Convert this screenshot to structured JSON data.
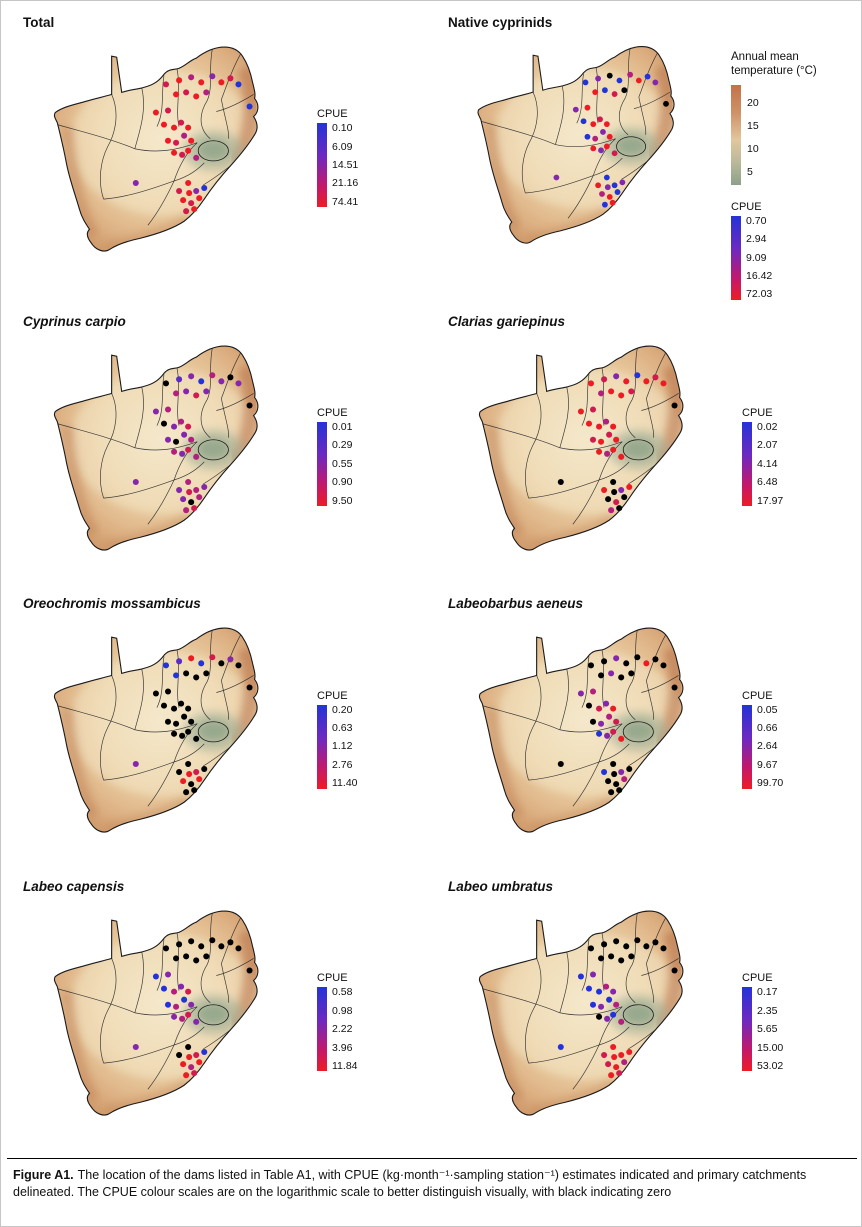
{
  "cpue_legend_title": "CPUE",
  "temp_legend": {
    "title_line1": "Annual mean",
    "title_line2": "temperature (°C)",
    "ticks": [
      "20",
      "15",
      "10",
      "5"
    ]
  },
  "caption": {
    "label": "Figure A1.",
    "text": "The location of the dams listed in Table A1, with CPUE (kg·month⁻¹·sampling station⁻¹) estimates indicated and primary catchments delineated. The CPUE colour scales are on the logarithmic scale to better distinguish visually, with black indicating zero"
  },
  "map": {
    "stations": [
      [
        150,
        52
      ],
      [
        163,
        48
      ],
      [
        175,
        45
      ],
      [
        185,
        50
      ],
      [
        196,
        44
      ],
      [
        205,
        50
      ],
      [
        214,
        46
      ],
      [
        222,
        52
      ],
      [
        160,
        62
      ],
      [
        170,
        60
      ],
      [
        180,
        64
      ],
      [
        190,
        60
      ],
      [
        233,
        74
      ],
      [
        140,
        80
      ],
      [
        152,
        78
      ],
      [
        148,
        92
      ],
      [
        158,
        95
      ],
      [
        165,
        90
      ],
      [
        172,
        95
      ],
      [
        168,
        103
      ],
      [
        175,
        108
      ],
      [
        160,
        110
      ],
      [
        152,
        108
      ],
      [
        158,
        120
      ],
      [
        166,
        122
      ],
      [
        172,
        118
      ],
      [
        180,
        125
      ],
      [
        120,
        150
      ],
      [
        172,
        150
      ],
      [
        163,
        158
      ],
      [
        173,
        160
      ],
      [
        180,
        158
      ],
      [
        167,
        167
      ],
      [
        175,
        170
      ],
      [
        183,
        165
      ],
      [
        188,
        155
      ],
      [
        178,
        176
      ],
      [
        170,
        178
      ]
    ]
  },
  "panels": [
    {
      "id": "total",
      "title": "Total",
      "italic": false,
      "cpue_labels": [
        "0.10",
        "6.09",
        "14.51",
        "21.16",
        "74.41"
      ],
      "has_temp_legend": false,
      "dot_colors": [
        "#d11a4e",
        "#ed1c24",
        "#b21f7e",
        "#ed1c24",
        "#8427ad",
        "#ed1c24",
        "#d11a4e",
        "#2433d8",
        "#ed1c24",
        "#d11a4e",
        "#ed1c24",
        "#b21f7e",
        "#2433d8",
        "#ed1c24",
        "#d11a4e",
        "#ed1c24",
        "#ed1c24",
        "#d11a4e",
        "#ed1c24",
        "#b21f7e",
        "#ed1c24",
        "#d11a4e",
        "#ed1c24",
        "#ed1c24",
        "#d11a4e",
        "#ed1c24",
        "#b21f7e",
        "#8427ad",
        "#ed1c24",
        "#d11a4e",
        "#ed1c24",
        "#8427ad",
        "#ed1c24",
        "#d11a4e",
        "#ed1c24",
        "#2433d8",
        "#ed1c24",
        "#d11a4e"
      ]
    },
    {
      "id": "native-cyprinids",
      "title": "Native cyprinids",
      "italic": false,
      "cpue_labels": [
        "0.70",
        "2.94",
        "9.09",
        "16.42",
        "72.03"
      ],
      "has_temp_legend": true,
      "dot_colors": [
        "#2433d8",
        "#8427ad",
        "#000000",
        "#2433d8",
        "#b21f7e",
        "#ed1c24",
        "#2433d8",
        "#8427ad",
        "#ed1c24",
        "#2433d8",
        "#d11a4e",
        "#000000",
        "#000000",
        "#8427ad",
        "#ed1c24",
        "#2433d8",
        "#ed1c24",
        "#d11a4e",
        "#ed1c24",
        "#8427ad",
        "#ed1c24",
        "#b21f7e",
        "#2433d8",
        "#ed1c24",
        "#8427ad",
        "#ed1c24",
        "#d11a4e",
        "#8427ad",
        "#2433d8",
        "#ed1c24",
        "#8427ad",
        "#2433d8",
        "#b21f7e",
        "#ed1c24",
        "#2433d8",
        "#8427ad",
        "#ed1c24",
        "#2433d8"
      ]
    },
    {
      "id": "cyprinus-carpio",
      "title": "Cyprinus carpio",
      "italic": true,
      "cpue_labels": [
        "0.01",
        "0.29",
        "0.55",
        "0.90",
        "9.50"
      ],
      "has_temp_legend": false,
      "dot_colors": [
        "#000000",
        "#5a2bc6",
        "#8427ad",
        "#2433d8",
        "#b21f7e",
        "#8427ad",
        "#000000",
        "#8427ad",
        "#b21f7e",
        "#8427ad",
        "#d11a4e",
        "#8427ad",
        "#000000",
        "#8427ad",
        "#b21f7e",
        "#000000",
        "#8427ad",
        "#b21f7e",
        "#d11a4e",
        "#8427ad",
        "#b21f7e",
        "#000000",
        "#8427ad",
        "#b21f7e",
        "#8427ad",
        "#d11a4e",
        "#b21f7e",
        "#8427ad",
        "#b21f7e",
        "#8427ad",
        "#d11a4e",
        "#b21f7e",
        "#8427ad",
        "#000000",
        "#b21f7e",
        "#8427ad",
        "#d11a4e",
        "#b21f7e"
      ]
    },
    {
      "id": "clarias-gariepinus",
      "title": "Clarias gariepinus",
      "italic": true,
      "cpue_labels": [
        "0.02",
        "2.07",
        "4.14",
        "6.48",
        "17.97"
      ],
      "has_temp_legend": false,
      "dot_colors": [
        "#ed1c24",
        "#d11a4e",
        "#8427ad",
        "#ed1c24",
        "#2433d8",
        "#ed1c24",
        "#d11a4e",
        "#ed1c24",
        "#b21f7e",
        "#ed1c24",
        "#ed1c24",
        "#d11a4e",
        "#000000",
        "#ed1c24",
        "#d11a4e",
        "#ed1c24",
        "#ed1c24",
        "#b21f7e",
        "#ed1c24",
        "#d11a4e",
        "#ed1c24",
        "#ed1c24",
        "#d11a4e",
        "#ed1c24",
        "#b21f7e",
        "#ed1c24",
        "#ed1c24",
        "#000000",
        "#000000",
        "#ed1c24",
        "#000000",
        "#8427ad",
        "#000000",
        "#d11a4e",
        "#000000",
        "#ed1c24",
        "#000000",
        "#b21f7e"
      ]
    },
    {
      "id": "oreochromis-mossambicus",
      "title": "Oreochromis mossambicus",
      "italic": true,
      "cpue_labels": [
        "0.20",
        "0.63",
        "1.12",
        "2.76",
        "11.40"
      ],
      "has_temp_legend": false,
      "dot_colors": [
        "#2433d8",
        "#5a2bc6",
        "#ed1c24",
        "#2433d8",
        "#d11a4e",
        "#000000",
        "#8427ad",
        "#000000",
        "#2433d8",
        "#000000",
        "#000000",
        "#000000",
        "#000000",
        "#000000",
        "#000000",
        "#000000",
        "#000000",
        "#000000",
        "#000000",
        "#000000",
        "#000000",
        "#000000",
        "#000000",
        "#000000",
        "#000000",
        "#000000",
        "#000000",
        "#8427ad",
        "#000000",
        "#000000",
        "#ed1c24",
        "#d11a4e",
        "#ed1c24",
        "#000000",
        "#ed1c24",
        "#000000",
        "#000000",
        "#000000"
      ]
    },
    {
      "id": "labeobarbus-aeneus",
      "title": "Labeobarbus aeneus",
      "italic": true,
      "cpue_labels": [
        "0.05",
        "0.66",
        "2.64",
        "9.67",
        "99.70"
      ],
      "has_temp_legend": false,
      "dot_colors": [
        "#000000",
        "#000000",
        "#8427ad",
        "#000000",
        "#000000",
        "#ed1c24",
        "#000000",
        "#000000",
        "#000000",
        "#8427ad",
        "#000000",
        "#000000",
        "#000000",
        "#8427ad",
        "#b21f7e",
        "#000000",
        "#d11a4e",
        "#8427ad",
        "#ed1c24",
        "#b21f7e",
        "#d11a4e",
        "#8427ad",
        "#000000",
        "#2433d8",
        "#8427ad",
        "#d11a4e",
        "#ed1c24",
        "#000000",
        "#000000",
        "#2433d8",
        "#000000",
        "#8427ad",
        "#000000",
        "#000000",
        "#b21f7e",
        "#000000",
        "#000000",
        "#000000"
      ]
    },
    {
      "id": "labeo-capensis",
      "title": "Labeo capensis",
      "italic": true,
      "cpue_labels": [
        "0.58",
        "0.98",
        "2.22",
        "3.96",
        "11.84"
      ],
      "has_temp_legend": false,
      "dot_colors": [
        "#000000",
        "#000000",
        "#000000",
        "#000000",
        "#000000",
        "#000000",
        "#000000",
        "#000000",
        "#000000",
        "#000000",
        "#000000",
        "#000000",
        "#000000",
        "#2433d8",
        "#8427ad",
        "#2433d8",
        "#b21f7e",
        "#8427ad",
        "#d11a4e",
        "#2433d8",
        "#8427ad",
        "#b21f7e",
        "#2433d8",
        "#8427ad",
        "#b21f7e",
        "#d11a4e",
        "#8427ad",
        "#8427ad",
        "#000000",
        "#000000",
        "#ed1c24",
        "#d11a4e",
        "#ed1c24",
        "#b21f7e",
        "#ed1c24",
        "#2433d8",
        "#d11a4e",
        "#ed1c24"
      ]
    },
    {
      "id": "labeo-umbratus",
      "title": "Labeo umbratus",
      "italic": true,
      "cpue_labels": [
        "0.17",
        "2.35",
        "5.65",
        "15.00",
        "53.02"
      ],
      "has_temp_legend": false,
      "dot_colors": [
        "#000000",
        "#000000",
        "#000000",
        "#000000",
        "#000000",
        "#000000",
        "#000000",
        "#000000",
        "#000000",
        "#000000",
        "#000000",
        "#000000",
        "#000000",
        "#2433d8",
        "#8427ad",
        "#2433d8",
        "#2433d8",
        "#b21f7e",
        "#8427ad",
        "#2433d8",
        "#b21f7e",
        "#8427ad",
        "#2433d8",
        "#000000",
        "#8427ad",
        "#2433d8",
        "#b21f7e",
        "#2433d8",
        "#ed1c24",
        "#d11a4e",
        "#ed1c24",
        "#ed1c24",
        "#d11a4e",
        "#ed1c24",
        "#b21f7e",
        "#ed1c24",
        "#d11a4e",
        "#ed1c24"
      ]
    }
  ]
}
